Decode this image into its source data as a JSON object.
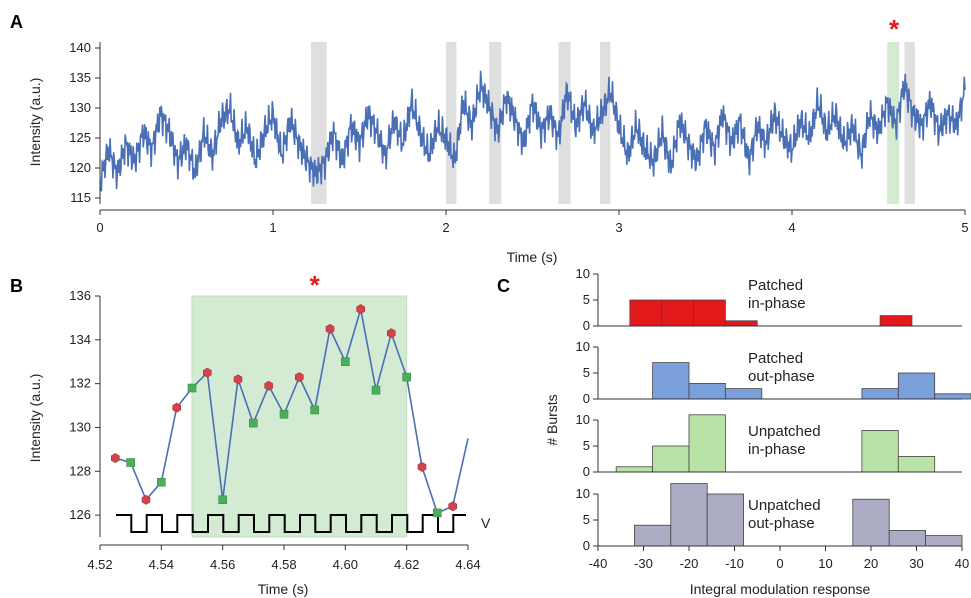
{
  "panels": {
    "A": {
      "label": "A",
      "chart_data": {
        "type": "line",
        "xlabel": "Time (s)",
        "ylabel": "Intensity (a.u.)",
        "xlim": [
          0,
          5
        ],
        "ylim": [
          114,
          141
        ],
        "xticks": [
          0,
          1,
          2,
          3,
          4,
          5
        ],
        "yticks": [
          115,
          120,
          125,
          130,
          135,
          140
        ],
        "color": "#4a6fb5",
        "grey_bands": [
          [
            1.22,
            1.31
          ],
          [
            2.0,
            2.06
          ],
          [
            2.25,
            2.32
          ],
          [
            2.65,
            2.72
          ],
          [
            2.89,
            2.95
          ],
          [
            4.65,
            4.71
          ]
        ],
        "green_band": [
          4.55,
          4.62
        ],
        "marker": "*",
        "marker_x": 4.59,
        "series": [
          {
            "x": [
              0,
              0.05,
              0.1,
              0.15,
              0.2,
              0.25,
              0.3,
              0.35,
              0.4,
              0.45,
              0.5,
              0.55,
              0.6,
              0.65,
              0.7,
              0.75,
              0.8,
              0.85,
              0.9,
              0.95,
              1.0,
              1.05,
              1.1,
              1.15,
              1.2,
              1.25,
              1.3,
              1.35,
              1.4,
              1.45,
              1.5,
              1.55,
              1.6,
              1.65,
              1.7,
              1.75,
              1.8,
              1.85,
              1.9,
              1.95,
              2.0,
              2.05,
              2.1,
              2.15,
              2.2,
              2.25,
              2.3,
              2.35,
              2.4,
              2.45,
              2.5,
              2.55,
              2.6,
              2.65,
              2.7,
              2.75,
              2.8,
              2.85,
              2.9,
              2.95,
              3.0,
              3.05,
              3.1,
              3.15,
              3.2,
              3.25,
              3.3,
              3.35,
              3.4,
              3.45,
              3.5,
              3.55,
              3.6,
              3.65,
              3.7,
              3.75,
              3.8,
              3.85,
              3.9,
              3.95,
              4.0,
              4.05,
              4.1,
              4.15,
              4.2,
              4.25,
              4.3,
              4.35,
              4.4,
              4.45,
              4.5,
              4.55,
              4.6,
              4.65,
              4.7,
              4.75,
              4.8,
              4.85,
              4.9,
              4.95,
              5.0
            ],
            "y": [
              118,
              123,
              119,
              124,
              121,
              126,
              123,
              129,
              126,
              121,
              124,
              119,
              126,
              122,
              128,
              130,
              124,
              127,
              121,
              126,
              129,
              122,
              128,
              124,
              121,
              119,
              121,
              126,
              121,
              127,
              124,
              129,
              126,
              122,
              128,
              124,
              131,
              126,
              122,
              127,
              125,
              121,
              131,
              127,
              134,
              130,
              126,
              132,
              128,
              124,
              131,
              126,
              129,
              125,
              133,
              127,
              131,
              126,
              129,
              133,
              127,
              122,
              127,
              123,
              121,
              126,
              120,
              128,
              124,
              121,
              127,
              123,
              129,
              124,
              128,
              121,
              127,
              124,
              129,
              125,
              123,
              128,
              125,
              131,
              126,
              129,
              124,
              127,
              122,
              129,
              126,
              131,
              127,
              134,
              129,
              127,
              131,
              126,
              129,
              127,
              133
            ]
          }
        ]
      }
    },
    "B": {
      "label": "B",
      "chart_data": {
        "type": "line",
        "xlabel": "Time (s)",
        "ylabel": "Intensity (a.u.)",
        "xlim": [
          4.52,
          4.64
        ],
        "ylim": [
          125,
          136
        ],
        "xticks": [
          "4.52",
          "4.54",
          "4.56",
          "4.58",
          "4.60",
          "4.62",
          "4.64"
        ],
        "yticks": [
          126,
          128,
          130,
          132,
          134,
          136
        ],
        "color": "#4a6fb5",
        "green_region": [
          4.55,
          4.62
        ],
        "marker": "*",
        "marker_x": 4.59,
        "square_wave_label": "V",
        "series": [
          {
            "x": [
              4.525,
              4.53,
              4.535,
              4.54,
              4.545,
              4.55,
              4.555,
              4.56,
              4.565,
              4.57,
              4.575,
              4.58,
              4.585,
              4.59,
              4.595,
              4.6,
              4.605,
              4.61,
              4.615,
              4.62,
              4.625,
              4.63,
              4.635,
              4.64
            ],
            "y": [
              128.6,
              128.4,
              126.7,
              127.5,
              130.9,
              131.8,
              132.5,
              126.7,
              132.2,
              130.2,
              131.9,
              130.6,
              132.3,
              130.8,
              134.5,
              133.0,
              135.4,
              131.7,
              134.3,
              132.3,
              128.2,
              126.1,
              126.4,
              129.5
            ],
            "marker_type": [
              "hex",
              "sq",
              "hex",
              "sq",
              "hex",
              "sq",
              "hex",
              "sq",
              "hex",
              "sq",
              "hex",
              "sq",
              "hex",
              "sq",
              "hex",
              "sq",
              "hex",
              "sq",
              "hex",
              "sq",
              "hex",
              "sq",
              "hex",
              "none"
            ]
          }
        ]
      }
    },
    "C": {
      "label": "C",
      "chart_data": {
        "type": "bar",
        "xlabel": "Integral modulation response",
        "ylabel": "# Bursts",
        "xlim": [
          -40,
          40
        ],
        "xticks": [
          -40,
          -30,
          -20,
          -10,
          0,
          10,
          20,
          30,
          40
        ],
        "ylim": [
          0,
          10
        ],
        "yticks": [
          0,
          5,
          10
        ],
        "subplots": [
          {
            "name_line1": "Patched",
            "name_line2": "in-phase",
            "color": "#e31a1c",
            "bins": [
              {
                "x": -33,
                "w": 7,
                "v": 5
              },
              {
                "x": -26,
                "w": 7,
                "v": 5
              },
              {
                "x": -19,
                "w": 7,
                "v": 5
              },
              {
                "x": -12,
                "w": 7,
                "v": 1
              },
              {
                "x": 22,
                "w": 7,
                "v": 2
              }
            ]
          },
          {
            "name_line1": "Patched",
            "name_line2": "out-phase",
            "color": "#7b9fd8",
            "bins": [
              {
                "x": -28,
                "w": 8,
                "v": 7
              },
              {
                "x": -20,
                "w": 8,
                "v": 3
              },
              {
                "x": -12,
                "w": 8,
                "v": 2
              },
              {
                "x": 18,
                "w": 8,
                "v": 2
              },
              {
                "x": 26,
                "w": 8,
                "v": 5
              },
              {
                "x": 34,
                "w": 8,
                "v": 1
              }
            ]
          },
          {
            "name_line1": "Unpatched",
            "name_line2": "in-phase",
            "color": "#b9e2a6",
            "bins": [
              {
                "x": -36,
                "w": 8,
                "v": 1
              },
              {
                "x": -28,
                "w": 8,
                "v": 5
              },
              {
                "x": -20,
                "w": 8,
                "v": 11
              },
              {
                "x": 18,
                "w": 8,
                "v": 8
              },
              {
                "x": 26,
                "w": 8,
                "v": 3
              }
            ]
          },
          {
            "name_line1": "Unpatched",
            "name_line2": "out-phase",
            "color": "#acacc4",
            "bins": [
              {
                "x": -32,
                "w": 8,
                "v": 4
              },
              {
                "x": -24,
                "w": 8,
                "v": 12
              },
              {
                "x": -16,
                "w": 8,
                "v": 10
              },
              {
                "x": 16,
                "w": 8,
                "v": 9
              },
              {
                "x": 24,
                "w": 8,
                "v": 3
              },
              {
                "x": 32,
                "w": 8,
                "v": 2
              }
            ]
          }
        ]
      }
    }
  }
}
